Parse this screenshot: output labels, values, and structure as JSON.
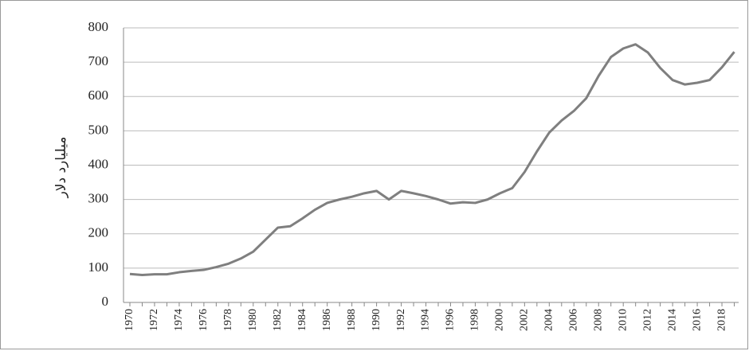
{
  "chart_data": {
    "type": "line",
    "y_label": "میلیارد دلار",
    "categories": [
      "1970",
      null,
      "1972",
      null,
      "1974",
      null,
      "1976",
      null,
      "1978",
      null,
      "1980",
      null,
      "1982",
      null,
      "1984",
      null,
      "1986",
      null,
      "1988",
      null,
      "1990",
      null,
      "1992",
      null,
      "1994",
      null,
      "1996",
      null,
      "1998",
      null,
      "2000",
      null,
      "2002",
      null,
      "2004",
      null,
      "2006",
      null,
      "2008",
      null,
      "2010",
      null,
      "2012",
      null,
      "2014",
      null,
      "2016",
      null,
      "2018",
      null
    ],
    "series": [
      {
        "color": "#7f7f7f",
        "values": [
          83,
          80,
          82,
          82,
          88,
          92,
          95,
          103,
          113,
          128,
          148,
          183,
          218,
          222,
          245,
          270,
          290,
          300,
          308,
          318,
          325,
          300,
          325,
          318,
          310,
          300,
          288,
          292,
          290,
          300,
          318,
          333,
          380,
          440,
          495,
          530,
          558,
          595,
          660,
          715,
          740,
          752,
          728,
          683,
          648,
          635,
          640,
          648,
          685,
          730
        ]
      }
    ],
    "ylim": [
      0,
      800
    ],
    "yticks": [
      0,
      100,
      200,
      300,
      400,
      500,
      600,
      700,
      800
    ],
    "grid": true
  }
}
